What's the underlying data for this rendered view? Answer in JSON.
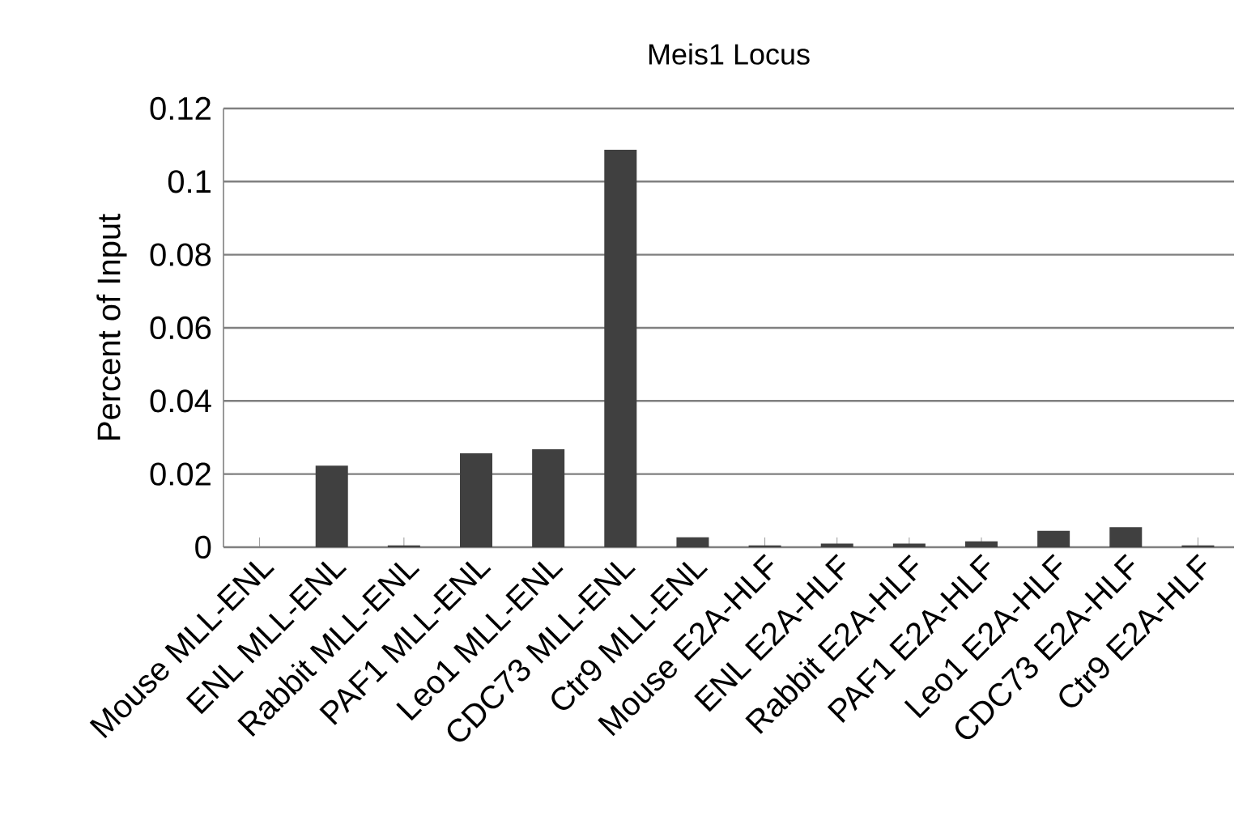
{
  "chart_data": {
    "type": "bar",
    "title": "Meis1 Locus",
    "ylabel": "Percent of Input",
    "categories": [
      "Mouse MLL-ENL",
      "ENL MLL-ENL",
      "Rabbit MLL-ENL",
      "PAF1 MLL-ENL",
      "Leo1 MLL-ENL",
      "CDC73 MLL-ENL",
      "Ctr9 MLL-ENL",
      "Mouse E2A-HLF",
      "ENL E2A-HLF",
      "Rabbit E2A-HLF",
      "PAF1 E2A-HLF",
      "Leo1 E2A-HLF",
      "CDC73 E2A-HLF",
      "Ctr9 E2A-HLF"
    ],
    "values": [
      0,
      0.0223,
      0.0005,
      0.0257,
      0.0268,
      0.1087,
      0.0027,
      0.0005,
      0.001,
      0.001,
      0.0016,
      0.0045,
      0.0055,
      0.0005
    ],
    "color": "#404040",
    "ylim": [
      0,
      0.12
    ],
    "yticks": [
      0,
      0.02,
      0.04,
      0.06,
      0.08,
      0.1,
      0.12
    ],
    "grid": "y"
  }
}
